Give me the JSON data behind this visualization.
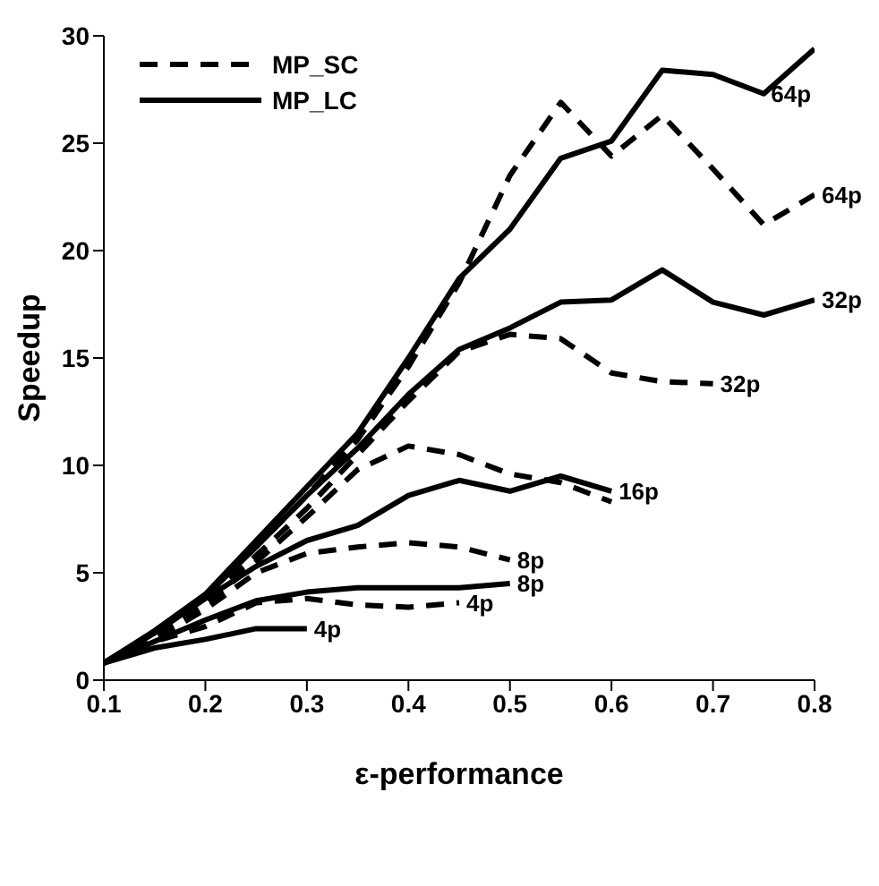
{
  "chart_data": {
    "type": "line",
    "xlabel": "ε-performance",
    "ylabel": "Speedup",
    "xlim": [
      0.1,
      0.8
    ],
    "ylim": [
      0,
      30
    ],
    "xticks": [
      0.1,
      0.2,
      0.3,
      0.4,
      0.5,
      0.6,
      0.7,
      0.8
    ],
    "yticks": [
      0,
      5,
      10,
      15,
      20,
      25,
      30
    ],
    "grid": false,
    "legend": "top left",
    "marker": "none",
    "series": [
      {
        "name": "MP_SC",
        "color": "#000000",
        "line_style": "dashed",
        "x": [
          0.1,
          0.15,
          0.2,
          0.25,
          0.3,
          0.35,
          0.4,
          0.45,
          0.5,
          0.55,
          0.6,
          0.65,
          0.7,
          0.75,
          0.8
        ],
        "values": [
          0.8,
          2.2,
          3.9,
          6.2,
          8.6,
          11.2,
          14.6,
          18.5,
          23.5,
          26.9,
          24.4,
          26.3,
          23.8,
          21.2,
          22.6
        ]
      },
      {
        "name": "MP_LC",
        "color": "#000000",
        "line_style": "solid",
        "x": [
          0.1,
          0.15,
          0.2,
          0.25,
          0.3,
          0.35,
          0.4,
          0.45,
          0.5,
          0.55,
          0.6,
          0.65,
          0.7,
          0.75,
          0.8
        ],
        "values": [
          0.8,
          2.3,
          4,
          6.5,
          9,
          11.5,
          15,
          18.7,
          21,
          24.3,
          25.1,
          28.4,
          28.2,
          27.3,
          29.4
        ]
      },
      {
        "color": "#000000",
        "line_style": "dashed",
        "x": [
          0.1,
          0.15,
          0.2,
          0.25,
          0.3,
          0.35,
          0.4,
          0.45,
          0.5,
          0.55,
          0.6,
          0.65,
          0.7
        ],
        "values": [
          0.8,
          2.1,
          3.7,
          5.8,
          8,
          10.5,
          13,
          15.3,
          16.1,
          15.9,
          14.3,
          13.9,
          13.8
        ]
      },
      {
        "color": "#000000",
        "line_style": "solid",
        "x": [
          0.1,
          0.15,
          0.2,
          0.25,
          0.3,
          0.35,
          0.4,
          0.45,
          0.5,
          0.55,
          0.6,
          0.65,
          0.7,
          0.75,
          0.8
        ],
        "values": [
          0.8,
          2.2,
          3.9,
          6.2,
          8.6,
          10.8,
          13.3,
          15.4,
          16.4,
          17.6,
          17.7,
          19.1,
          17.6,
          17,
          17.7
        ]
      },
      {
        "color": "#000000",
        "line_style": "dashed",
        "x": [
          0.1,
          0.15,
          0.2,
          0.25,
          0.3,
          0.35,
          0.4,
          0.45,
          0.5,
          0.55,
          0.6
        ],
        "values": [
          0.8,
          2,
          3.5,
          5.5,
          7.6,
          9.8,
          10.9,
          10.5,
          9.6,
          9.2,
          8.3
        ]
      },
      {
        "color": "#000000",
        "line_style": "solid",
        "x": [
          0.1,
          0.15,
          0.2,
          0.25,
          0.3,
          0.35,
          0.4,
          0.45,
          0.5,
          0.55,
          0.6
        ],
        "values": [
          0.8,
          2.2,
          3.8,
          5.3,
          6.5,
          7.2,
          8.6,
          9.3,
          8.8,
          9.5,
          8.8
        ]
      },
      {
        "color": "#000000",
        "line_style": "dashed",
        "x": [
          0.1,
          0.15,
          0.2,
          0.25,
          0.3,
          0.35,
          0.4,
          0.45,
          0.5
        ],
        "values": [
          0.8,
          1.9,
          3.3,
          5,
          5.9,
          6.2,
          6.4,
          6.2,
          5.6
        ]
      },
      {
        "color": "#000000",
        "line_style": "solid",
        "x": [
          0.1,
          0.15,
          0.2,
          0.25,
          0.3,
          0.35,
          0.4,
          0.45,
          0.5
        ],
        "values": [
          0.8,
          1.8,
          2.8,
          3.7,
          4.1,
          4.3,
          4.3,
          4.3,
          4.5
        ]
      },
      {
        "color": "#000000",
        "line_style": "dashed",
        "x": [
          0.1,
          0.15,
          0.2,
          0.25,
          0.3,
          0.35,
          0.4,
          0.45
        ],
        "values": [
          0.8,
          1.8,
          2.5,
          3.6,
          3.8,
          3.5,
          3.4,
          3.6
        ]
      },
      {
        "color": "#000000",
        "line_style": "solid",
        "x": [
          0.1,
          0.15,
          0.2,
          0.25,
          0.3
        ],
        "values": [
          0.8,
          1.5,
          1.9,
          2.4,
          2.4
        ]
      }
    ],
    "annotations": [
      {
        "text": "64p",
        "x": 0.75,
        "y": 27.3
      },
      {
        "text": "64p",
        "x": 0.8,
        "y": 22.6
      },
      {
        "text": "32p",
        "x": 0.8,
        "y": 17.7
      },
      {
        "text": "32p",
        "x": 0.7,
        "y": 13.8
      },
      {
        "text": "16p",
        "x": 0.6,
        "y": 8.8
      },
      {
        "text": "8p",
        "x": 0.5,
        "y": 5.6
      },
      {
        "text": "8p",
        "x": 0.5,
        "y": 4.5
      },
      {
        "text": "4p",
        "x": 0.45,
        "y": 3.6
      },
      {
        "text": "4p",
        "x": 0.3,
        "y": 2.4
      }
    ]
  }
}
